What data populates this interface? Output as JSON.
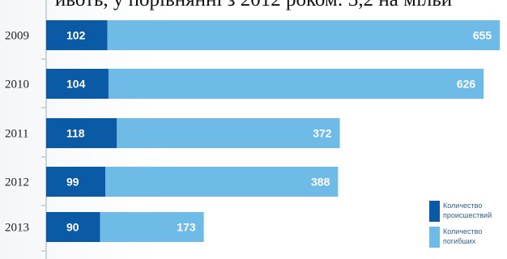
{
  "caption": "ивоть, у порівнянні з 2012 роком: 3,2 на мільй",
  "colors": {
    "incidents": "#0b5aa6",
    "deaths": "#6ebbe8",
    "axis": "#c9d3dc"
  },
  "chart_data": {
    "type": "bar",
    "orientation": "horizontal",
    "stacked": true,
    "categories": [
      "2009",
      "2010",
      "2011",
      "2012",
      "2013"
    ],
    "series": [
      {
        "name": "Количество происшествий",
        "values": [
          102,
          104,
          118,
          99,
          90
        ]
      },
      {
        "name": "Количество погибших",
        "values": [
          655,
          626,
          372,
          388,
          173
        ]
      }
    ],
    "legend": [
      "Количество происшествий",
      "Количество погибших"
    ],
    "legend_position": "bottom-right"
  }
}
